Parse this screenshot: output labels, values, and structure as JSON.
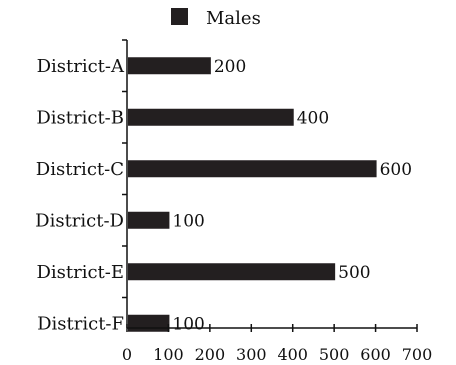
{
  "chart_data": {
    "type": "bar",
    "orientation": "horizontal",
    "title": "",
    "xlabel": "",
    "ylabel": "",
    "categories": [
      "District-A",
      "District-B",
      "District-C",
      "District-D",
      "District-E",
      "District-F"
    ],
    "series": [
      {
        "name": "Males",
        "values": [
          200,
          400,
          600,
          100,
          500,
          100
        ],
        "color": "#231f20"
      }
    ],
    "data_labels": [
      "200",
      "400",
      "600",
      "100",
      "500",
      "100"
    ],
    "xlim": [
      0,
      700
    ],
    "xticks": [
      0,
      100,
      200,
      300,
      400,
      500,
      600,
      700
    ],
    "xtick_labels": [
      "0",
      "100",
      "200",
      "300",
      "400",
      "500",
      "600",
      "700"
    ],
    "grid": false,
    "legend_position": "top-center"
  }
}
